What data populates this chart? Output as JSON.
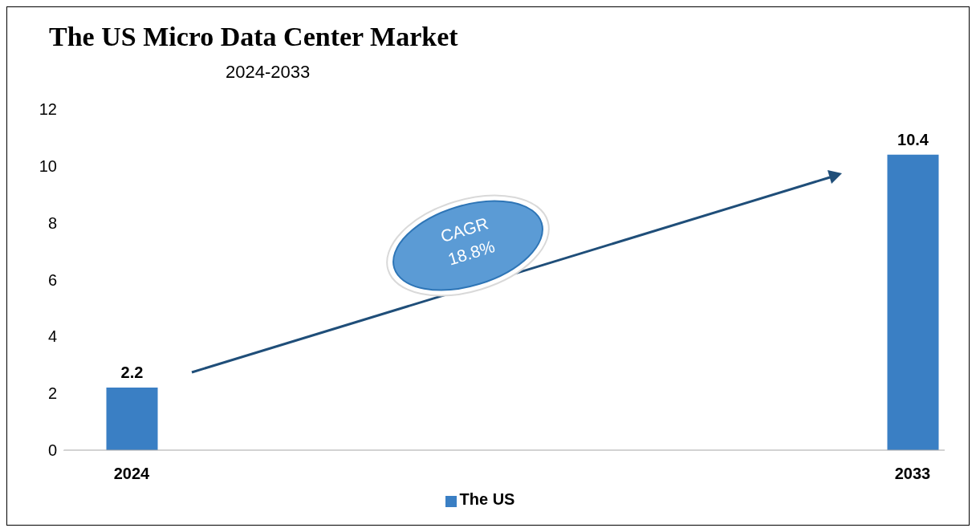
{
  "chart_data": {
    "type": "bar",
    "title": "The US Micro Data Center Market",
    "subtitle": "2024-2033",
    "categories": [
      "2024",
      "2033"
    ],
    "series": [
      {
        "name": "The US",
        "color": "#3a7fc4",
        "values": [
          2.2,
          10.4
        ]
      }
    ],
    "ylim": [
      0,
      12
    ],
    "yticks": [
      0,
      2,
      4,
      6,
      8,
      10,
      12
    ],
    "legend": "bottom",
    "data_labels": true,
    "annotations": [
      "CAGR 18.8%"
    ]
  }
}
